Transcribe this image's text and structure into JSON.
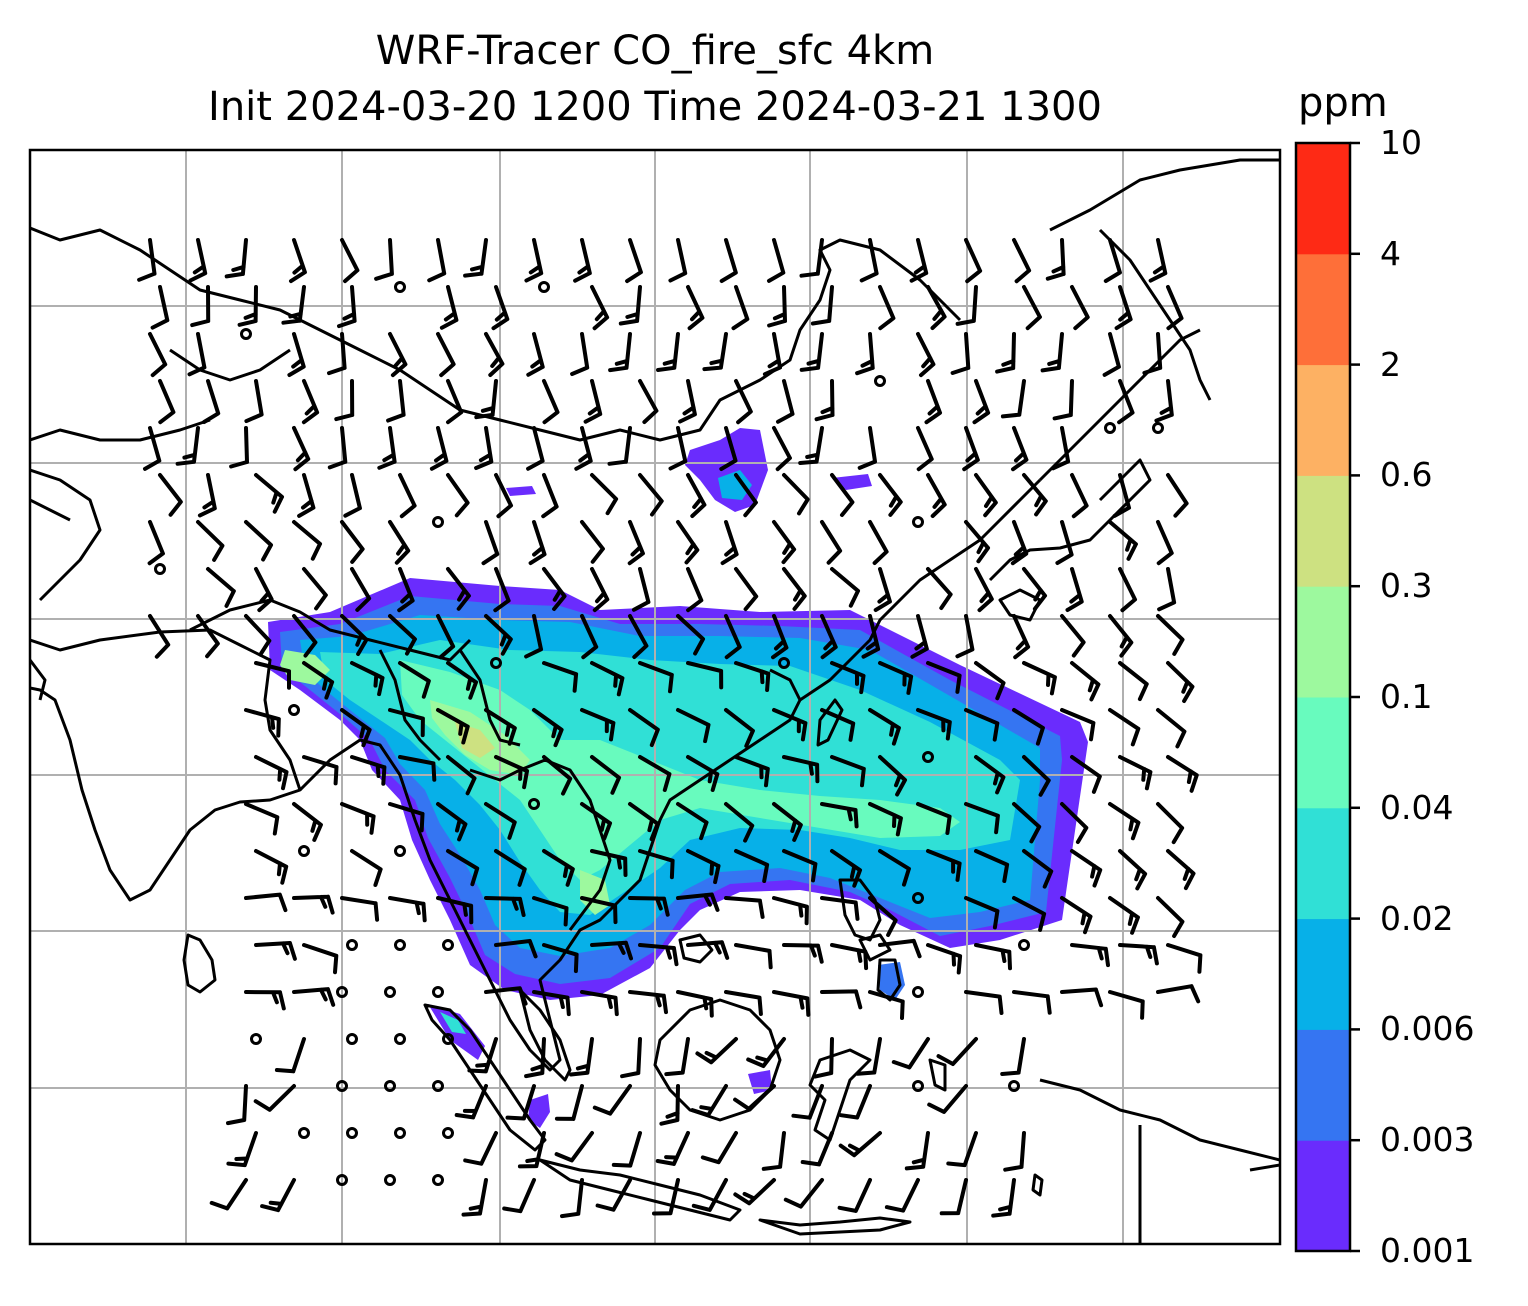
{
  "title": {
    "line1": "WRF-Tracer CO_fire_sfc 4km",
    "line2": "Init 2024-03-20 1200 Time 2024-03-21 1300"
  },
  "colorbar": {
    "unit": "ppm",
    "levels": [
      "0.001",
      "0.003",
      "0.006",
      "0.02",
      "0.04",
      "0.1",
      "0.3",
      "0.6",
      "2",
      "4",
      "10"
    ],
    "colors": [
      "#6a2cfd",
      "#3575f2",
      "#07b0e8",
      "#30e0d6",
      "#68fbbe",
      "#9df99e",
      "#cde181",
      "#fdb163",
      "#fe6f39",
      "#fe2a15"
    ]
  },
  "map": {
    "grid": "on",
    "coastline_color": "#000000",
    "grid_color": "#b0b0b0",
    "barb_color": "#000000"
  }
}
